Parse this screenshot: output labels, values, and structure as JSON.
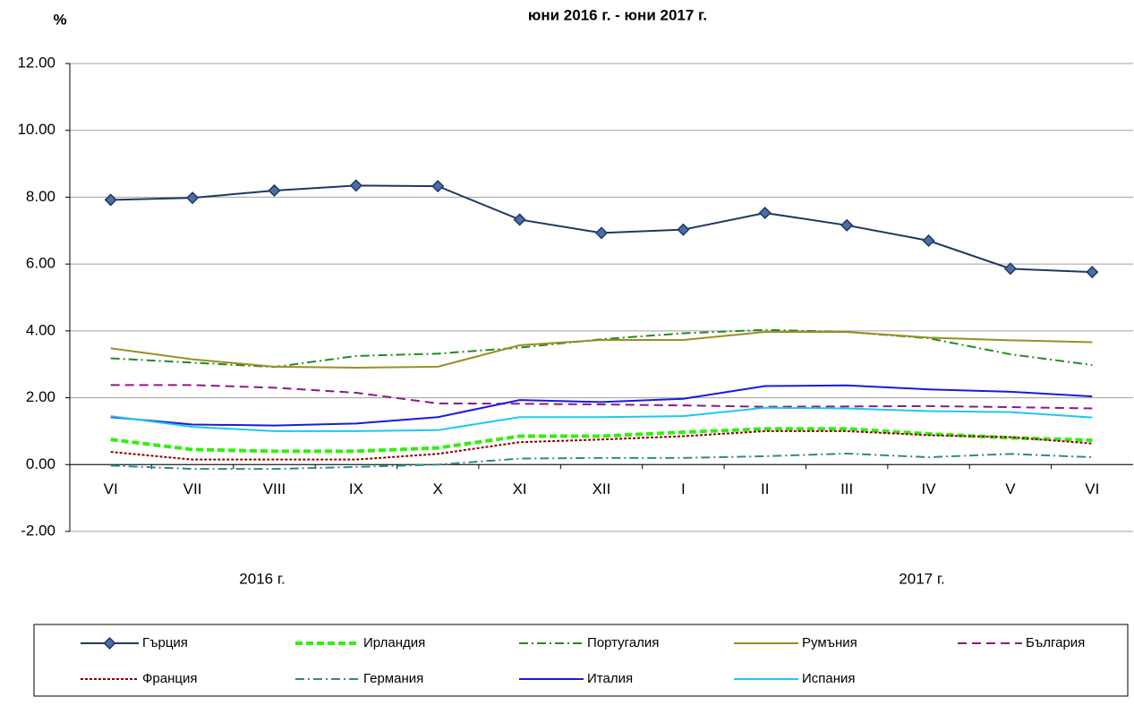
{
  "chart_data": {
    "type": "line",
    "subtitle": "юни 2016 г. - юни 2017 г.",
    "y_label": "%",
    "categories": [
      "VI",
      "VII",
      "VIII",
      "IX",
      "X",
      "XI",
      "XII",
      "I",
      "II",
      "III",
      "IV",
      "V",
      "VI"
    ],
    "year_labels": [
      "2016 г.",
      "2017 г."
    ],
    "ylim": [
      -2,
      12
    ],
    "yticks": [
      {
        "value": -2,
        "label": "-2.00"
      },
      {
        "value": 0,
        "label": "0.00"
      },
      {
        "value": 2,
        "label": "2.00"
      },
      {
        "value": 4,
        "label": "4.00"
      },
      {
        "value": 6,
        "label": "6.00"
      },
      {
        "value": 8,
        "label": "8.00"
      },
      {
        "value": 10,
        "label": "10.00"
      },
      {
        "value": 12,
        "label": "12.00"
      }
    ],
    "grid": true,
    "series": [
      {
        "name": "Гърция",
        "color": "#1f3864",
        "width": 2,
        "dash": "none",
        "marker": "diamond",
        "values": [
          7.92,
          7.98,
          8.2,
          8.35,
          8.33,
          7.33,
          6.93,
          7.03,
          7.53,
          7.16,
          6.7,
          5.86,
          5.76
        ]
      },
      {
        "name": "Ирландия",
        "color": "#33ee11",
        "width": 4,
        "dash": "8,4",
        "values": [
          0.75,
          0.45,
          0.4,
          0.4,
          0.5,
          0.85,
          0.85,
          0.97,
          1.07,
          1.07,
          0.92,
          0.8,
          0.73
        ]
      },
      {
        "name": "Португалия",
        "color": "#228b22",
        "width": 2,
        "dash": "10,4,2,4",
        "values": [
          3.18,
          3.05,
          2.92,
          3.25,
          3.32,
          3.5,
          3.75,
          3.93,
          4.03,
          3.97,
          3.78,
          3.3,
          2.98
        ]
      },
      {
        "name": "Румъния",
        "color": "#9a8f22",
        "width": 2,
        "dash": "none",
        "values": [
          3.48,
          3.15,
          2.93,
          2.9,
          2.93,
          3.57,
          3.73,
          3.73,
          3.97,
          3.97,
          3.8,
          3.72,
          3.66
        ]
      },
      {
        "name": "България",
        "color": "#8b1a8b",
        "width": 2,
        "dash": "10,6",
        "values": [
          2.38,
          2.38,
          2.3,
          2.15,
          1.83,
          1.82,
          1.8,
          1.77,
          1.73,
          1.74,
          1.75,
          1.72,
          1.68
        ]
      },
      {
        "name": "Франция",
        "color": "#8b0000",
        "width": 2,
        "dash": "3,2",
        "values": [
          0.38,
          0.15,
          0.15,
          0.15,
          0.32,
          0.67,
          0.75,
          0.85,
          1.0,
          1.0,
          0.88,
          0.82,
          0.63
        ]
      },
      {
        "name": "Германия",
        "color": "#2e8b8b",
        "width": 2,
        "dash": "10,4,2,4",
        "values": [
          -0.03,
          -0.13,
          -0.13,
          -0.07,
          0.0,
          0.18,
          0.2,
          0.2,
          0.25,
          0.33,
          0.22,
          0.32,
          0.22
        ]
      },
      {
        "name": "Италия",
        "color": "#1a1adf",
        "width": 2,
        "dash": "none",
        "values": [
          1.42,
          1.2,
          1.17,
          1.23,
          1.42,
          1.93,
          1.87,
          1.97,
          2.35,
          2.37,
          2.25,
          2.18,
          2.04
        ]
      },
      {
        "name": "Испания",
        "color": "#1ec8f0",
        "width": 2,
        "dash": "none",
        "values": [
          1.45,
          1.13,
          1.0,
          1.0,
          1.03,
          1.42,
          1.42,
          1.45,
          1.7,
          1.68,
          1.6,
          1.57,
          1.41
        ]
      }
    ]
  }
}
